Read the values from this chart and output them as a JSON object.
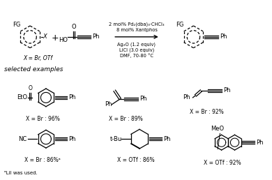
{
  "title_reaction_line1": "2 mol% Pd₂(dba)₃·CHCl₃",
  "title_reaction_line2": "8 mol% Xantphos",
  "conditions_line1": "Ag₂O (1.2 equiv)",
  "conditions_line2": "LiCl (3.0 equiv)",
  "conditions_line3": "DMF, 70-80 °C",
  "selected_examples": "selected examples",
  "x_label1": "X = Br, OTf",
  "x_br1": "X = Br : 96%",
  "x_br2": "X = Br : 89%",
  "x_br3": "X = Br : 92%",
  "x_br4": "X = Br : 86%ᵃ",
  "x_otf1": "X = OTf : 86%",
  "x_otf2": "X = OTf : 92%",
  "footnote": "ᵃLiI was used.",
  "bg_color": "#ffffff",
  "text_color": "#000000"
}
